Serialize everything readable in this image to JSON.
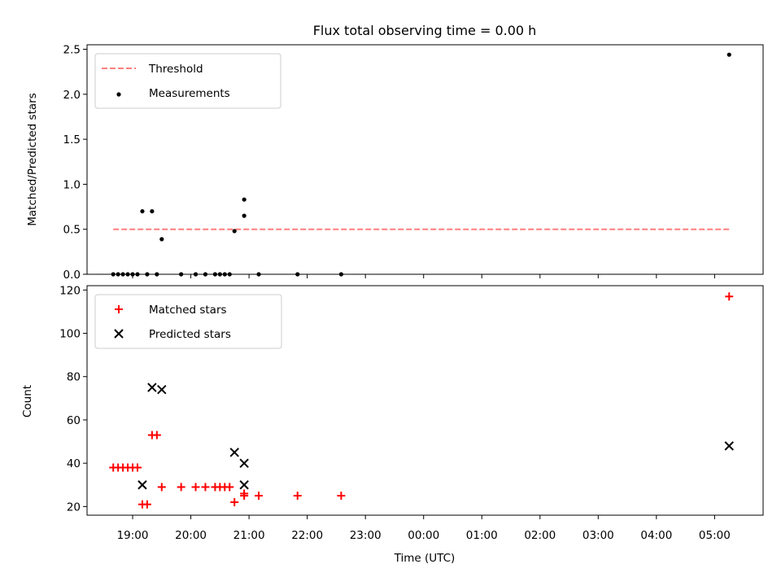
{
  "chart_data": [
    {
      "type": "scatter",
      "title": "Flux total observing time = 0.00 h",
      "xlabel": "",
      "ylabel": "Matched/Predicted stars",
      "xlim": [
        "18:13",
        "05:50"
      ],
      "ylim": [
        0,
        2.55
      ],
      "yticks": [
        0.0,
        0.5,
        1.0,
        1.5,
        2.0,
        2.5
      ],
      "ytick_labels": [
        "0.0",
        "0.5",
        "1.0",
        "1.5",
        "2.0",
        "2.5"
      ],
      "legend": {
        "position": "top-left",
        "entries": [
          "Threshold",
          "Measurements"
        ]
      },
      "threshold": {
        "name": "Threshold",
        "value": 0.5,
        "x_start": "18:40",
        "x_end": "05:15",
        "color": "#ff7f7f"
      },
      "series": [
        {
          "name": "Measurements",
          "marker": "dot",
          "color": "#000000",
          "points": [
            [
              "18:40",
              0
            ],
            [
              "18:45",
              0
            ],
            [
              "18:50",
              0
            ],
            [
              "18:55",
              0
            ],
            [
              "19:00",
              0
            ],
            [
              "19:05",
              0
            ],
            [
              "19:10",
              0.7
            ],
            [
              "19:15",
              0
            ],
            [
              "19:20",
              0.7
            ],
            [
              "19:25",
              0
            ],
            [
              "19:30",
              0.39
            ],
            [
              "19:50",
              0
            ],
            [
              "20:05",
              0
            ],
            [
              "20:15",
              0
            ],
            [
              "20:25",
              0
            ],
            [
              "20:30",
              0
            ],
            [
              "20:35",
              0
            ],
            [
              "20:40",
              0
            ],
            [
              "20:45",
              0.48
            ],
            [
              "20:55",
              0.65
            ],
            [
              "20:55",
              0.83
            ],
            [
              "21:10",
              0
            ],
            [
              "21:50",
              0
            ],
            [
              "22:35",
              0
            ],
            [
              "05:15",
              2.44
            ]
          ]
        }
      ]
    },
    {
      "type": "scatter",
      "title": "",
      "xlabel": "Time (UTC)",
      "ylabel": "Count",
      "xlim": [
        "18:13",
        "05:50"
      ],
      "ylim": [
        16,
        122
      ],
      "yticks": [
        20,
        40,
        60,
        80,
        100,
        120
      ],
      "ytick_labels": [
        "20",
        "40",
        "60",
        "80",
        "100",
        "120"
      ],
      "xtick_labels": [
        "19:00",
        "20:00",
        "21:00",
        "22:00",
        "23:00",
        "00:00",
        "01:00",
        "02:00",
        "03:00",
        "04:00",
        "05:00"
      ],
      "legend": {
        "position": "top-left",
        "entries": [
          "Matched stars",
          "Predicted stars"
        ]
      },
      "series": [
        {
          "name": "Matched stars",
          "marker": "plus",
          "color": "#ff0000",
          "points": [
            [
              "18:40",
              38
            ],
            [
              "18:45",
              38
            ],
            [
              "18:50",
              38
            ],
            [
              "18:55",
              38
            ],
            [
              "19:00",
              38
            ],
            [
              "19:05",
              38
            ],
            [
              "19:10",
              21
            ],
            [
              "19:15",
              21
            ],
            [
              "19:20",
              53
            ],
            [
              "19:25",
              53
            ],
            [
              "19:30",
              29
            ],
            [
              "19:50",
              29
            ],
            [
              "20:05",
              29
            ],
            [
              "20:15",
              29
            ],
            [
              "20:25",
              29
            ],
            [
              "20:30",
              29
            ],
            [
              "20:35",
              29
            ],
            [
              "20:40",
              29
            ],
            [
              "20:45",
              22
            ],
            [
              "20:55",
              26
            ],
            [
              "20:55",
              25
            ],
            [
              "21:10",
              25
            ],
            [
              "21:50",
              25
            ],
            [
              "22:35",
              25
            ],
            [
              "05:15",
              117
            ]
          ]
        },
        {
          "name": "Predicted stars",
          "marker": "x",
          "color": "#000000",
          "points": [
            [
              "19:10",
              30
            ],
            [
              "19:20",
              75
            ],
            [
              "19:30",
              74
            ],
            [
              "20:45",
              45
            ],
            [
              "20:55",
              40
            ],
            [
              "20:55",
              30
            ],
            [
              "05:15",
              48
            ]
          ]
        }
      ]
    }
  ]
}
